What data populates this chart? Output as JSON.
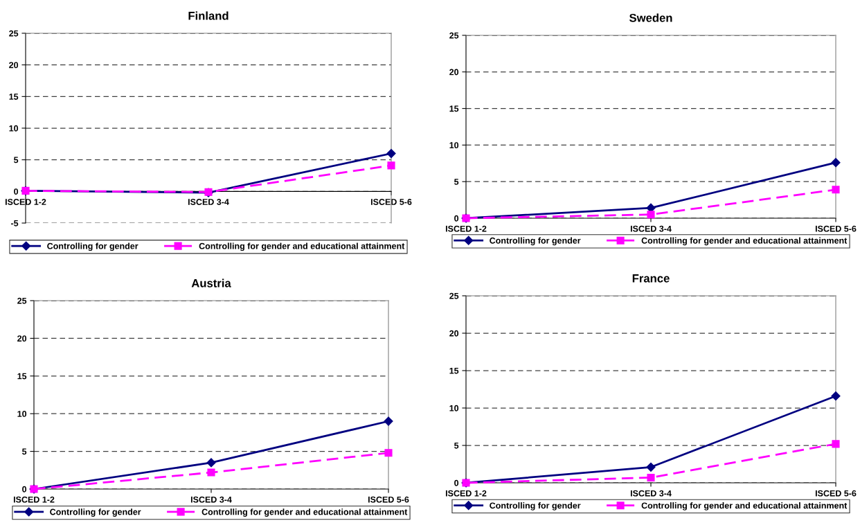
{
  "chart_data": [
    {
      "type": "line",
      "title": "Finland",
      "categories": [
        "ISCED 1-2",
        "ISCED 3-4",
        "ISCED 5-6"
      ],
      "ylim": [
        -5,
        25
      ],
      "yticks": [
        -5,
        0,
        5,
        10,
        15,
        20,
        25
      ],
      "grid": "y",
      "legend": "bottom",
      "series": [
        {
          "name": "Controlling for gender",
          "color": "#000080",
          "marker": "diamond",
          "line_style": "solid",
          "values": [
            0.1,
            -0.2,
            6.0
          ]
        },
        {
          "name": "Controlling for gender and educational attainment",
          "color": "#ff00ff",
          "marker": "square",
          "line_style": "dashed",
          "values": [
            0.1,
            -0.1,
            4.1
          ]
        }
      ]
    },
    {
      "type": "line",
      "title": "Sweden",
      "categories": [
        "ISCED 1-2",
        "ISCED 3-4",
        "ISCED 5-6"
      ],
      "ylim": [
        0,
        25
      ],
      "yticks": [
        0,
        5,
        10,
        15,
        20,
        25
      ],
      "grid": "y",
      "legend": "bottom",
      "series": [
        {
          "name": "Controlling for gender",
          "color": "#000080",
          "marker": "diamond",
          "line_style": "solid",
          "values": [
            0,
            1.4,
            7.6
          ]
        },
        {
          "name": "Controlling for gender and educational attainment",
          "color": "#ff00ff",
          "marker": "square",
          "line_style": "dashed",
          "values": [
            0,
            0.5,
            3.9
          ]
        }
      ]
    },
    {
      "type": "line",
      "title": "Austria",
      "categories": [
        "ISCED 1-2",
        "ISCED 3-4",
        "ISCED 5-6"
      ],
      "ylim": [
        0,
        25
      ],
      "yticks": [
        0,
        5,
        10,
        15,
        20,
        25
      ],
      "grid": "y",
      "legend": "bottom",
      "series": [
        {
          "name": "Controlling for gender",
          "color": "#000080",
          "marker": "diamond",
          "line_style": "solid",
          "values": [
            0,
            3.5,
            9.0
          ]
        },
        {
          "name": "Controlling for gender and educational attainment",
          "color": "#ff00ff",
          "marker": "square",
          "line_style": "dashed",
          "values": [
            0,
            2.2,
            4.8
          ]
        }
      ]
    },
    {
      "type": "line",
      "title": "France",
      "categories": [
        "ISCED 1-2",
        "ISCED 3-4",
        "ISCED 5-6"
      ],
      "ylim": [
        0,
        25
      ],
      "yticks": [
        0,
        5,
        10,
        15,
        20,
        25
      ],
      "grid": "y",
      "legend": "bottom",
      "series": [
        {
          "name": "Controlling for gender",
          "color": "#000080",
          "marker": "diamond",
          "line_style": "solid",
          "values": [
            0,
            2.1,
            11.6
          ]
        },
        {
          "name": "Controlling for gender and educational attainment",
          "color": "#ff00ff",
          "marker": "square",
          "line_style": "dashed",
          "values": [
            0,
            0.7,
            5.2
          ]
        }
      ]
    }
  ]
}
